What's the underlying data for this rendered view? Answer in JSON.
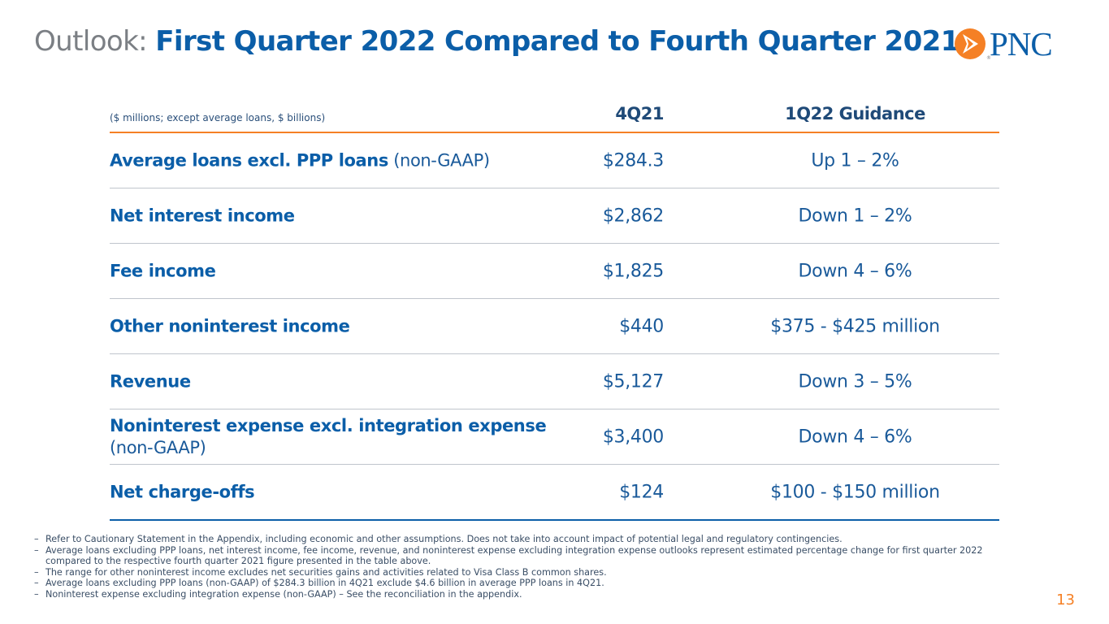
{
  "title": {
    "prefix": "Outlook:",
    "main": "First Quarter 2022 Compared to Fourth Quarter 2021"
  },
  "logo": {
    "text": "PNC",
    "icon": "pnc-arrow-logo"
  },
  "table": {
    "units_note": "($ millions; except average loans, $ billions)",
    "col1_header": "4Q21",
    "col2_header": "1Q22 Guidance",
    "rows": [
      {
        "label": "Average loans excl. PPP loans",
        "sub": "(non-GAAP)",
        "q421": "$284.3",
        "guidance": "Up 1 – 2%"
      },
      {
        "label": "Net interest income",
        "sub": "",
        "q421": "$2,862",
        "guidance": "Down 1 – 2%"
      },
      {
        "label": "Fee income",
        "sub": "",
        "q421": "$1,825",
        "guidance": "Down 4 – 6%"
      },
      {
        "label": "Other noninterest income",
        "sub": "",
        "q421": "$440",
        "guidance": "$375 - $425 million"
      },
      {
        "label": "Revenue",
        "sub": "",
        "q421": "$5,127",
        "guidance": "Down 3 – 5%"
      },
      {
        "label": "Noninterest expense excl. integration expense",
        "sub": "(non-GAAP)",
        "q421": "$3,400",
        "guidance": "Down 4 – 6%"
      },
      {
        "label": "Net charge-offs",
        "sub": "",
        "q421": "$124",
        "guidance": "$100 - $150 million"
      }
    ]
  },
  "notes": [
    "Refer to Cautionary Statement in the Appendix, including economic and other assumptions. Does not take into account impact of potential legal and regulatory contingencies.",
    "Average loans excluding PPP loans, net interest income, fee income, revenue, and noninterest expense excluding integration expense outlooks represent estimated percentage change for first quarter 2022 compared to the respective fourth quarter 2021 figure presented in the table above.",
    "The range for other noninterest income excludes net securities gains and activities related to Visa Class B common shares.",
    "Average loans excluding PPP loans (non-GAAP) of $284.3 billion in 4Q21 exclude $4.6 billion in average PPP loans in 4Q21.",
    "Noninterest expense excluding integration expense (non-GAAP) – See the reconciliation in the appendix."
  ],
  "note_bullet": "–",
  "page_number": "13",
  "colors": {
    "brand_blue": "#0b5ea8",
    "accent_orange": "#f58025",
    "gray": "#7b7f84"
  }
}
